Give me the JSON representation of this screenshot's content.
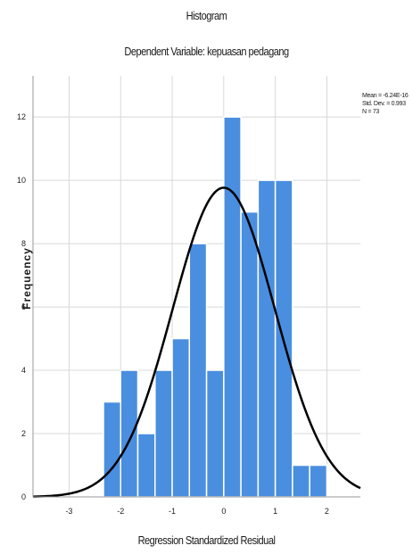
{
  "chart_data": {
    "type": "bar",
    "title": "Histogram",
    "subtitle": "Dependent Variable: kepuasan pedagang",
    "xlabel": "Regression Standardized Residual",
    "ylabel": "Frequency",
    "xlim": [
      -3.7,
      2.65
    ],
    "ylim": [
      0,
      13.3
    ],
    "grid": true,
    "xticks": [
      "-3",
      "-2",
      "-1",
      "0",
      "1",
      "2"
    ],
    "yticks": [
      "0",
      "2",
      "4",
      "6",
      "8",
      "10",
      "12"
    ],
    "bin_width": 0.333,
    "bins": [
      {
        "start": -2.333,
        "value": 3
      },
      {
        "start": -2.0,
        "value": 4
      },
      {
        "start": -1.667,
        "value": 2
      },
      {
        "start": -1.333,
        "value": 4
      },
      {
        "start": -1.0,
        "value": 5
      },
      {
        "start": -0.667,
        "value": 8
      },
      {
        "start": -0.333,
        "value": 4
      },
      {
        "start": 0.0,
        "value": 12
      },
      {
        "start": 0.333,
        "value": 9
      },
      {
        "start": 0.667,
        "value": 10
      },
      {
        "start": 1.0,
        "value": 10
      },
      {
        "start": 1.333,
        "value": 1
      },
      {
        "start": 1.667,
        "value": 1
      }
    ],
    "normal_curve": {
      "mean": 0,
      "sd": 0.993,
      "n": 73
    },
    "stats_text": [
      "Mean = -6.24E-16",
      "Std. Dev. = 0.993",
      "N = 73"
    ],
    "colors": {
      "bar": "#4a8ee0",
      "bar_edge": "#ffffff",
      "curve": "#000000",
      "grid": "#d8d8d8"
    }
  }
}
